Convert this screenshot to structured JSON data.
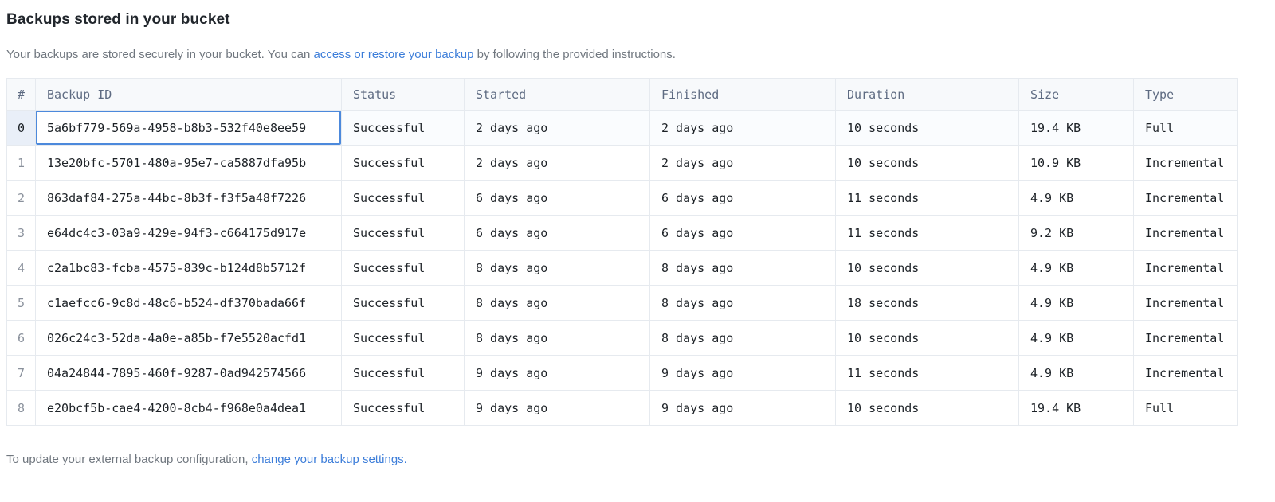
{
  "page": {
    "title": "Backups stored in your bucket",
    "subtitle": {
      "before_link": "Your backups are stored securely in your bucket. You can ",
      "link": "access or restore your backup",
      "after_link": " by following the provided instructions."
    },
    "footer": {
      "before_link": "To update your external backup configuration, ",
      "link": "change your backup settings."
    }
  },
  "colors": {
    "link": "#3c7dd9",
    "header_bg": "#f7f9fb",
    "selected_cell_border": "#4c89dc",
    "selected_row_number_bg": "#e9eff8",
    "table_border": "#e6eaef"
  },
  "table": {
    "columns": [
      "#",
      "Backup ID",
      "Status",
      "Started",
      "Finished",
      "Duration",
      "Size",
      "Type"
    ],
    "rows": [
      {
        "index": "0",
        "backup_id": "5a6bf779-569a-4958-b8b3-532f40e8ee59",
        "status": "Successful",
        "started": "2 days ago",
        "finished": "2 days ago",
        "duration": "10 seconds",
        "size": "19.4 KB",
        "type": "Full",
        "selected": true
      },
      {
        "index": "1",
        "backup_id": "13e20bfc-5701-480a-95e7-ca5887dfa95b",
        "status": "Successful",
        "started": "2 days ago",
        "finished": "2 days ago",
        "duration": "10 seconds",
        "size": "10.9 KB",
        "type": "Incremental",
        "selected": false
      },
      {
        "index": "2",
        "backup_id": "863daf84-275a-44bc-8b3f-f3f5a48f7226",
        "status": "Successful",
        "started": "6 days ago",
        "finished": "6 days ago",
        "duration": "11 seconds",
        "size": "4.9 KB",
        "type": "Incremental",
        "selected": false
      },
      {
        "index": "3",
        "backup_id": "e64dc4c3-03a9-429e-94f3-c664175d917e",
        "status": "Successful",
        "started": "6 days ago",
        "finished": "6 days ago",
        "duration": "11 seconds",
        "size": "9.2 KB",
        "type": "Incremental",
        "selected": false
      },
      {
        "index": "4",
        "backup_id": "c2a1bc83-fcba-4575-839c-b124d8b5712f",
        "status": "Successful",
        "started": "8 days ago",
        "finished": "8 days ago",
        "duration": "10 seconds",
        "size": "4.9 KB",
        "type": "Incremental",
        "selected": false
      },
      {
        "index": "5",
        "backup_id": "c1aefcc6-9c8d-48c6-b524-df370bada66f",
        "status": "Successful",
        "started": "8 days ago",
        "finished": "8 days ago",
        "duration": "18 seconds",
        "size": "4.9 KB",
        "type": "Incremental",
        "selected": false
      },
      {
        "index": "6",
        "backup_id": "026c24c3-52da-4a0e-a85b-f7e5520acfd1",
        "status": "Successful",
        "started": "8 days ago",
        "finished": "8 days ago",
        "duration": "10 seconds",
        "size": "4.9 KB",
        "type": "Incremental",
        "selected": false
      },
      {
        "index": "7",
        "backup_id": "04a24844-7895-460f-9287-0ad942574566",
        "status": "Successful",
        "started": "9 days ago",
        "finished": "9 days ago",
        "duration": "11 seconds",
        "size": "4.9 KB",
        "type": "Incremental",
        "selected": false
      },
      {
        "index": "8",
        "backup_id": "e20bcf5b-cae4-4200-8cb4-f968e0a4dea1",
        "status": "Successful",
        "started": "9 days ago",
        "finished": "9 days ago",
        "duration": "10 seconds",
        "size": "19.4 KB",
        "type": "Full",
        "selected": false
      }
    ]
  }
}
